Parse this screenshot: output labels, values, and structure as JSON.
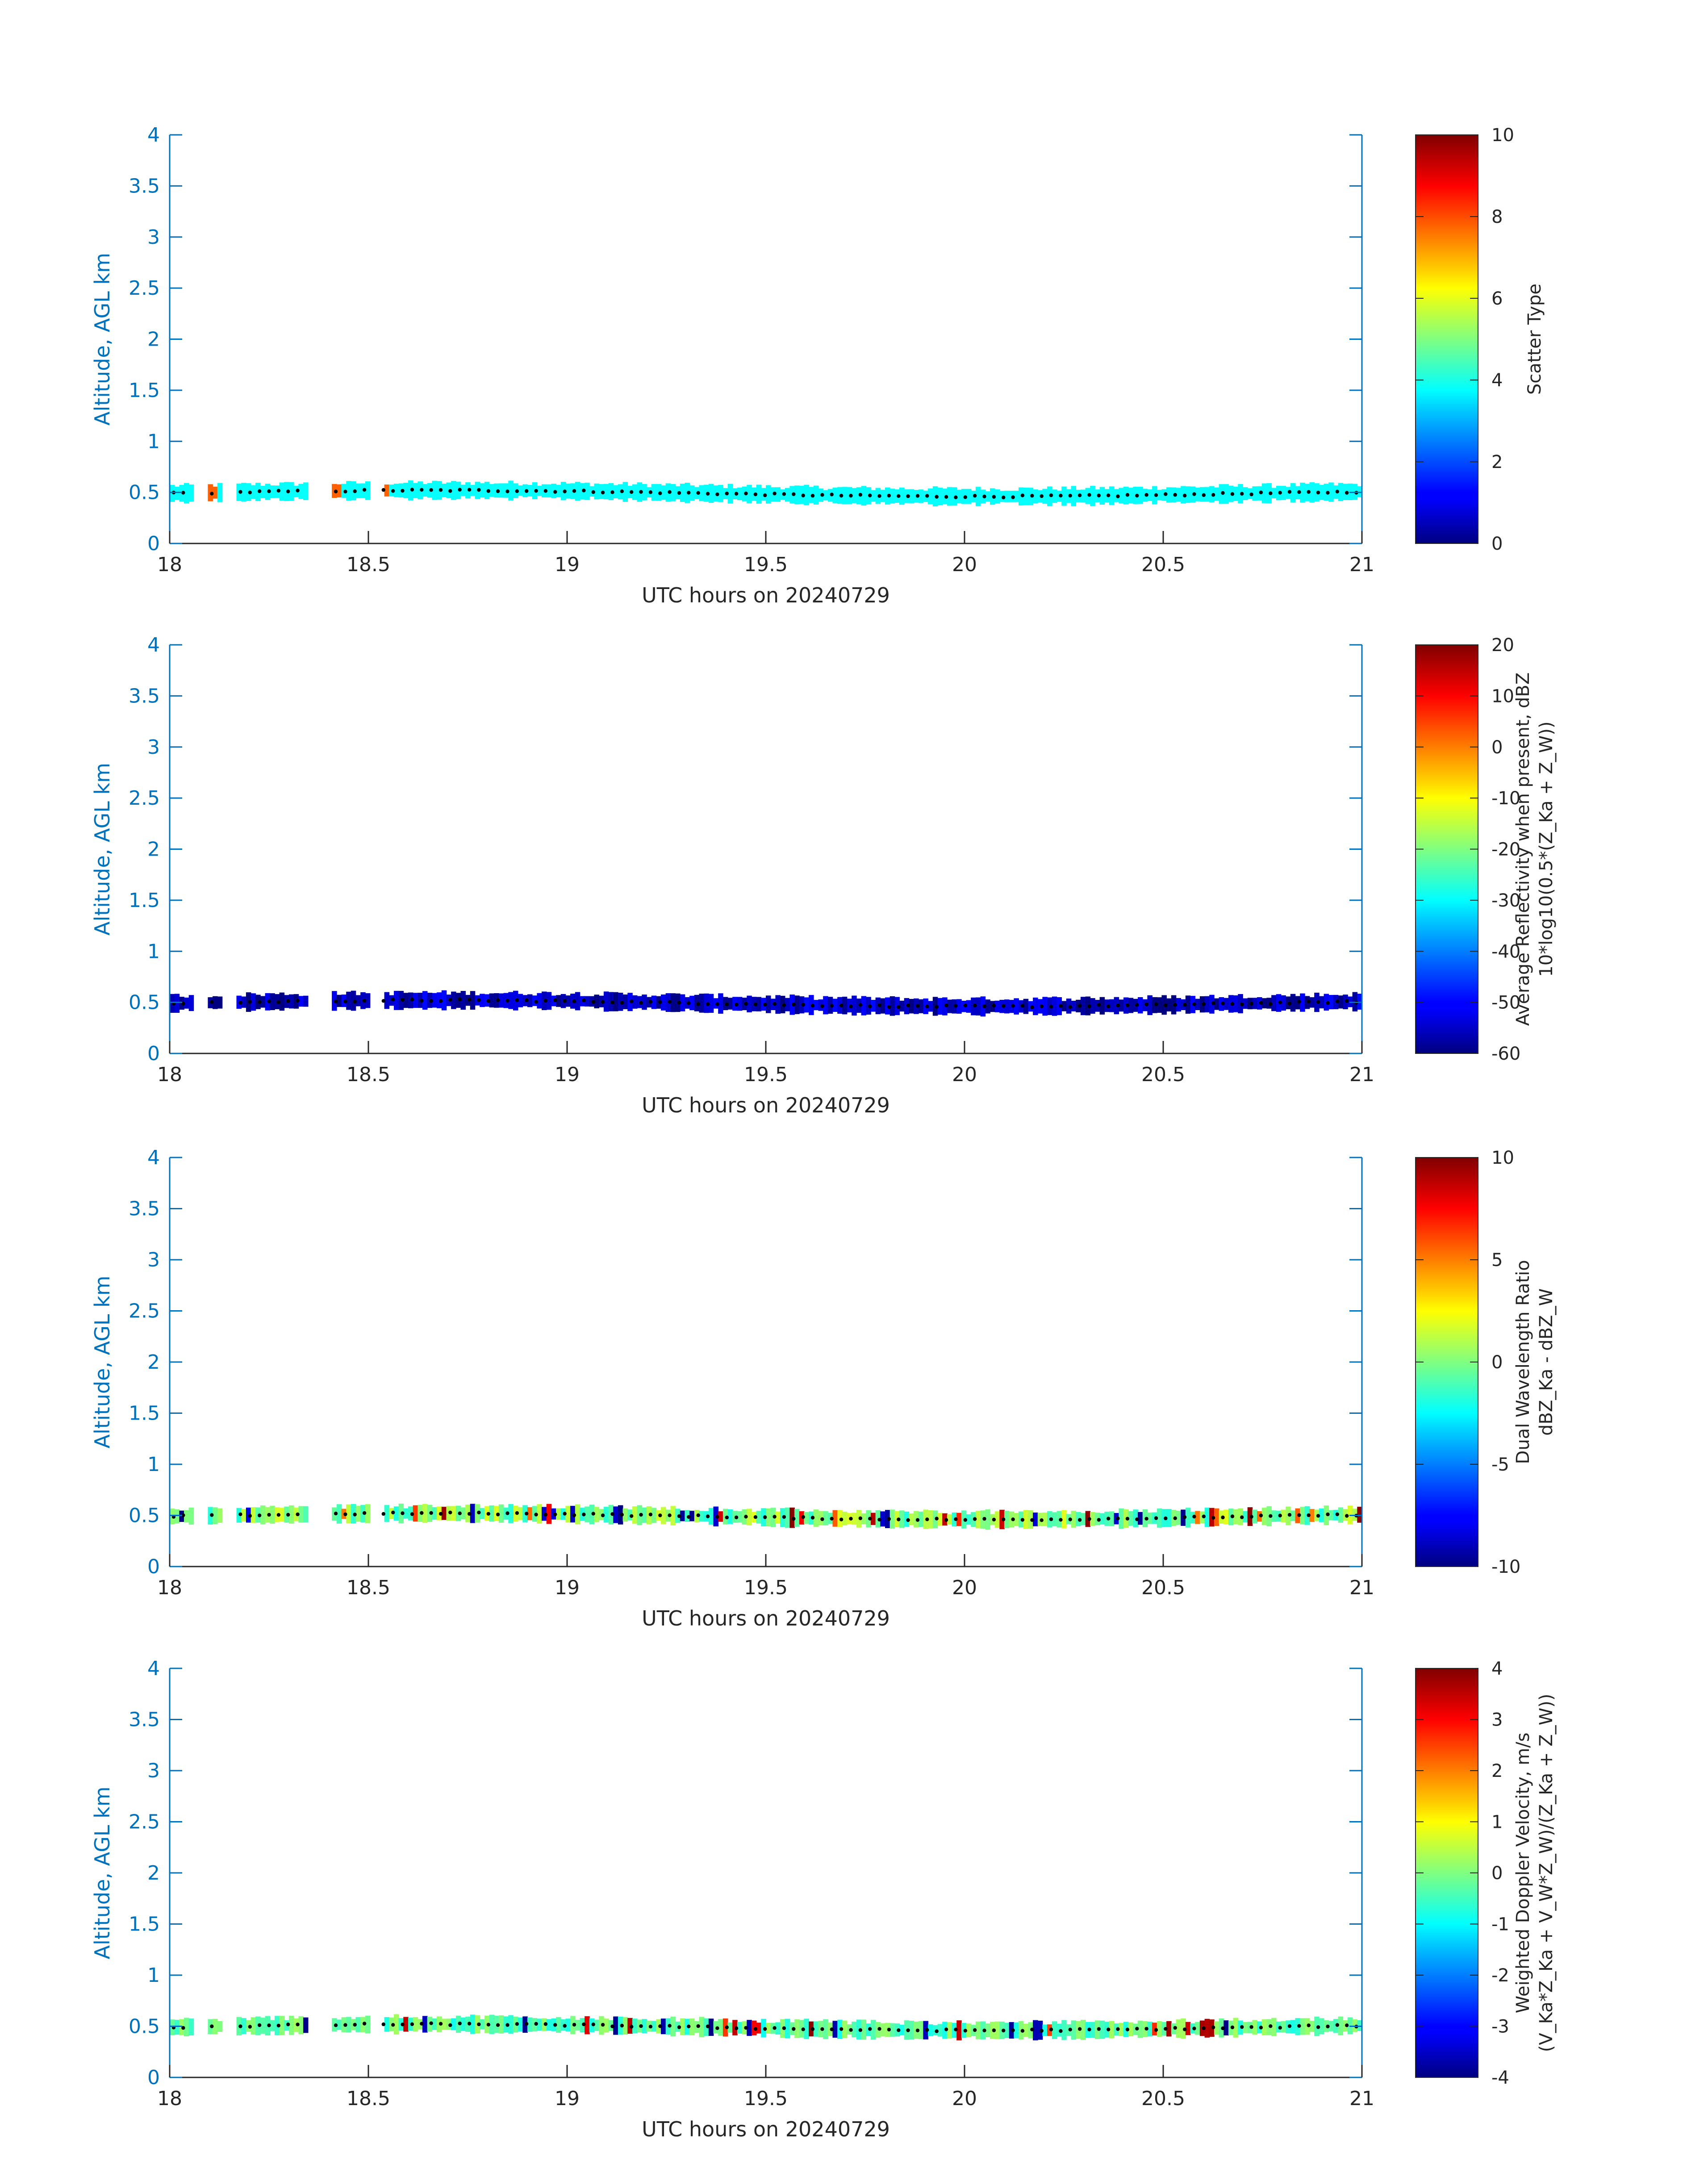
{
  "chart_data": [
    {
      "type": "heatmap",
      "panel": "scatter-type",
      "xlabel": "UTC hours on 20240729",
      "ylabel": "Altitude, AGL km",
      "xlim": [
        18,
        21
      ],
      "ylim": [
        0,
        4
      ],
      "x_ticks": [
        "18",
        "18.5",
        "19",
        "19.5",
        "20",
        "20.5",
        "21"
      ],
      "y_ticks": [
        "0",
        "0.5",
        "1",
        "1.5",
        "2",
        "2.5",
        "3",
        "3.5",
        "4"
      ],
      "colorbar": {
        "label_lines": [
          "Scatter Type"
        ],
        "clim": [
          0,
          10
        ],
        "ticks": [
          "0",
          "2",
          "4",
          "6",
          "8",
          "10"
        ]
      },
      "layer": {
        "value": 3.8,
        "outliers": [
          {
            "x": 18.1,
            "value": 7.8
          },
          {
            "x": 18.41,
            "value": 7.8
          },
          {
            "x": 18.54,
            "value": 7.8
          }
        ]
      }
    },
    {
      "type": "heatmap",
      "panel": "average-reflectivity",
      "xlabel": "UTC hours on 20240729",
      "ylabel": "Altitude, AGL km",
      "xlim": [
        18,
        21
      ],
      "ylim": [
        0,
        4
      ],
      "x_ticks": [
        "18",
        "18.5",
        "19",
        "19.5",
        "20",
        "20.5",
        "21"
      ],
      "y_ticks": [
        "0",
        "0.5",
        "1",
        "1.5",
        "2",
        "2.5",
        "3",
        "3.5",
        "4"
      ],
      "colorbar": {
        "label_lines": [
          "Average Reflectivity when present, dBZ",
          "10*log10(0.5*(Z_Ka + Z_W))"
        ],
        "clim": [
          -60,
          20
        ],
        "ticks": [
          "-60",
          "-50",
          "-40",
          "-30",
          "-20",
          "-10",
          "0",
          "10",
          "20"
        ]
      },
      "layer": {
        "value": -55
      }
    },
    {
      "type": "heatmap",
      "panel": "dual-wavelength-ratio",
      "xlabel": "UTC hours on 20240729",
      "ylabel": "Altitude, AGL km",
      "xlim": [
        18,
        21
      ],
      "ylim": [
        0,
        4
      ],
      "x_ticks": [
        "18",
        "18.5",
        "19",
        "19.5",
        "20",
        "20.5",
        "21"
      ],
      "y_ticks": [
        "0",
        "0.5",
        "1",
        "1.5",
        "2",
        "2.5",
        "3",
        "3.5",
        "4"
      ],
      "colorbar": {
        "label_lines": [
          "Dual Wavelength Ratio",
          "dBZ_Ka - dBZ_W"
        ],
        "clim": [
          -10,
          10
        ],
        "ticks": [
          "-10",
          "-5",
          "0",
          "5",
          "10"
        ]
      },
      "layer": {
        "value": 0
      }
    },
    {
      "type": "heatmap",
      "panel": "weighted-doppler-velocity",
      "xlabel": "UTC hours on 20240729",
      "ylabel": "Altitude, AGL km",
      "xlim": [
        18,
        21
      ],
      "ylim": [
        0,
        4
      ],
      "x_ticks": [
        "18",
        "18.5",
        "19",
        "19.5",
        "20",
        "20.5",
        "21"
      ],
      "y_ticks": [
        "0",
        "0.5",
        "1",
        "1.5",
        "2",
        "2.5",
        "3",
        "3.5",
        "4"
      ],
      "colorbar": {
        "label_lines": [
          "Weighted Doppler Velocity, m/s",
          "(V_Ka*Z_Ka + V_W*Z_W)/(Z_Ka + Z_W))"
        ],
        "clim": [
          -4,
          4
        ],
        "ticks": [
          "-4",
          "-3",
          "-2",
          "-1",
          "0",
          "1",
          "2",
          "3",
          "4"
        ]
      },
      "layer": {
        "value": -0.3
      }
    }
  ]
}
